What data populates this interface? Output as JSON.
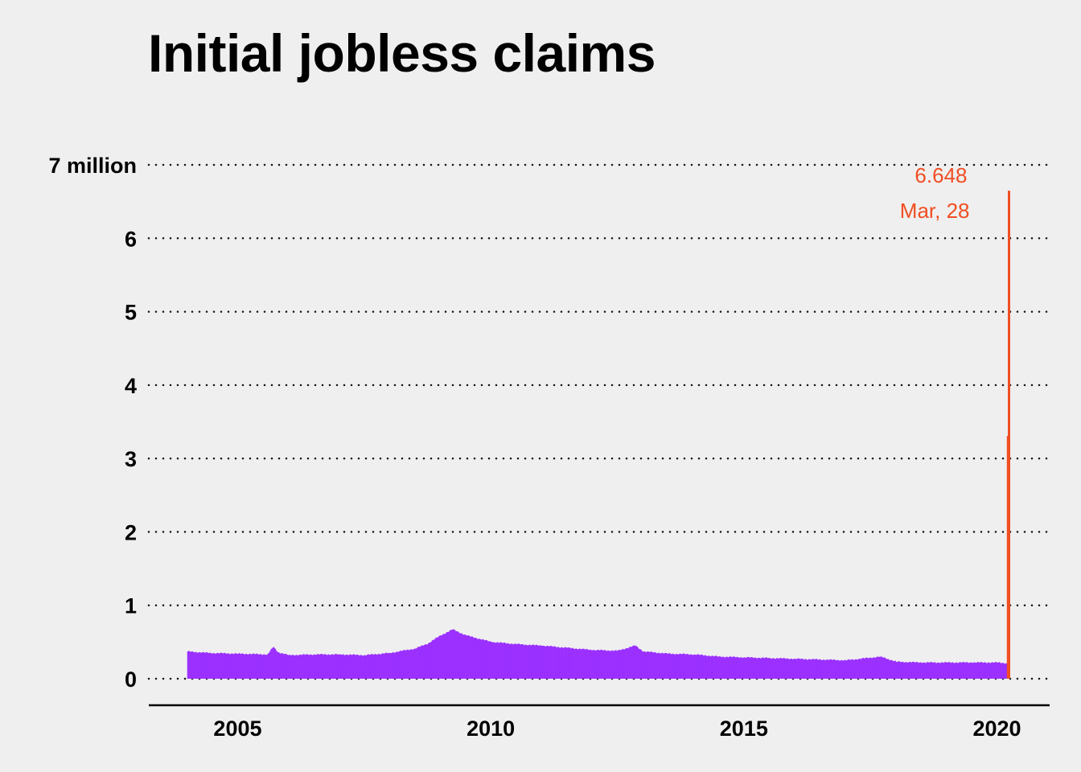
{
  "chart_data": {
    "type": "bar",
    "title": "Initial jobless claims",
    "xlabel": "",
    "ylabel": "",
    "ylim": [
      0,
      7
    ],
    "y_unit": "million",
    "y_ticks": [
      0,
      1,
      2,
      3,
      4,
      5,
      6,
      7
    ],
    "y_tick_labels": [
      "0",
      "1",
      "2",
      "3",
      "4",
      "5",
      "6",
      "7 million"
    ],
    "x_ticks": [
      2005,
      2010,
      2015,
      2020
    ],
    "x_tick_labels": [
      "2005",
      "2010",
      "2015",
      "2020"
    ],
    "xlim": [
      "2003-04-01",
      "2021-01-15"
    ],
    "grid": {
      "horizontal": "dotted",
      "vertical": false
    },
    "colors": {
      "regular": "#9b30ff",
      "highlight": "#f04e23",
      "background": "#efefef"
    },
    "series": [
      {
        "values": [
          {
            "x": "2004-01-03",
            "y": 0.37
          },
          {
            "x": "2004-06-01",
            "y": 0.35
          },
          {
            "x": "2005-01-01",
            "y": 0.34
          },
          {
            "x": "2005-08-01",
            "y": 0.33
          },
          {
            "x": "2005-09-10",
            "y": 0.43
          },
          {
            "x": "2005-10-15",
            "y": 0.36
          },
          {
            "x": "2006-01-01",
            "y": 0.32
          },
          {
            "x": "2006-07-01",
            "y": 0.33
          },
          {
            "x": "2007-01-01",
            "y": 0.33
          },
          {
            "x": "2007-07-01",
            "y": 0.32
          },
          {
            "x": "2008-01-01",
            "y": 0.35
          },
          {
            "x": "2008-07-01",
            "y": 0.41
          },
          {
            "x": "2008-10-01",
            "y": 0.48
          },
          {
            "x": "2009-01-01",
            "y": 0.59
          },
          {
            "x": "2009-03-28",
            "y": 0.67
          },
          {
            "x": "2009-07-01",
            "y": 0.59
          },
          {
            "x": "2010-01-01",
            "y": 0.5
          },
          {
            "x": "2010-07-01",
            "y": 0.47
          },
          {
            "x": "2011-01-01",
            "y": 0.45
          },
          {
            "x": "2011-07-01",
            "y": 0.42
          },
          {
            "x": "2012-01-01",
            "y": 0.39
          },
          {
            "x": "2012-07-01",
            "y": 0.38
          },
          {
            "x": "2012-11-03",
            "y": 0.45
          },
          {
            "x": "2013-01-01",
            "y": 0.37
          },
          {
            "x": "2013-07-01",
            "y": 0.34
          },
          {
            "x": "2014-01-01",
            "y": 0.33
          },
          {
            "x": "2014-07-01",
            "y": 0.3
          },
          {
            "x": "2015-01-01",
            "y": 0.29
          },
          {
            "x": "2015-07-01",
            "y": 0.28
          },
          {
            "x": "2016-01-01",
            "y": 0.27
          },
          {
            "x": "2016-07-01",
            "y": 0.26
          },
          {
            "x": "2017-01-01",
            "y": 0.25
          },
          {
            "x": "2017-09-09",
            "y": 0.3
          },
          {
            "x": "2018-01-01",
            "y": 0.23
          },
          {
            "x": "2018-07-01",
            "y": 0.22
          },
          {
            "x": "2019-01-01",
            "y": 0.22
          },
          {
            "x": "2019-07-01",
            "y": 0.22
          },
          {
            "x": "2020-01-01",
            "y": 0.22
          },
          {
            "x": "2020-03-07",
            "y": 0.21
          },
          {
            "x": "2020-03-14",
            "y": 0.28
          }
        ]
      },
      {
        "highlight": true,
        "values": [
          {
            "x": "2020-03-21",
            "y": 3.307
          },
          {
            "x": "2020-03-28",
            "y": 6.648
          }
        ]
      }
    ],
    "annotation": {
      "value_label": "6.648",
      "date_label": "Mar, 28",
      "x": "2020-03-28",
      "y": 6.648
    }
  }
}
